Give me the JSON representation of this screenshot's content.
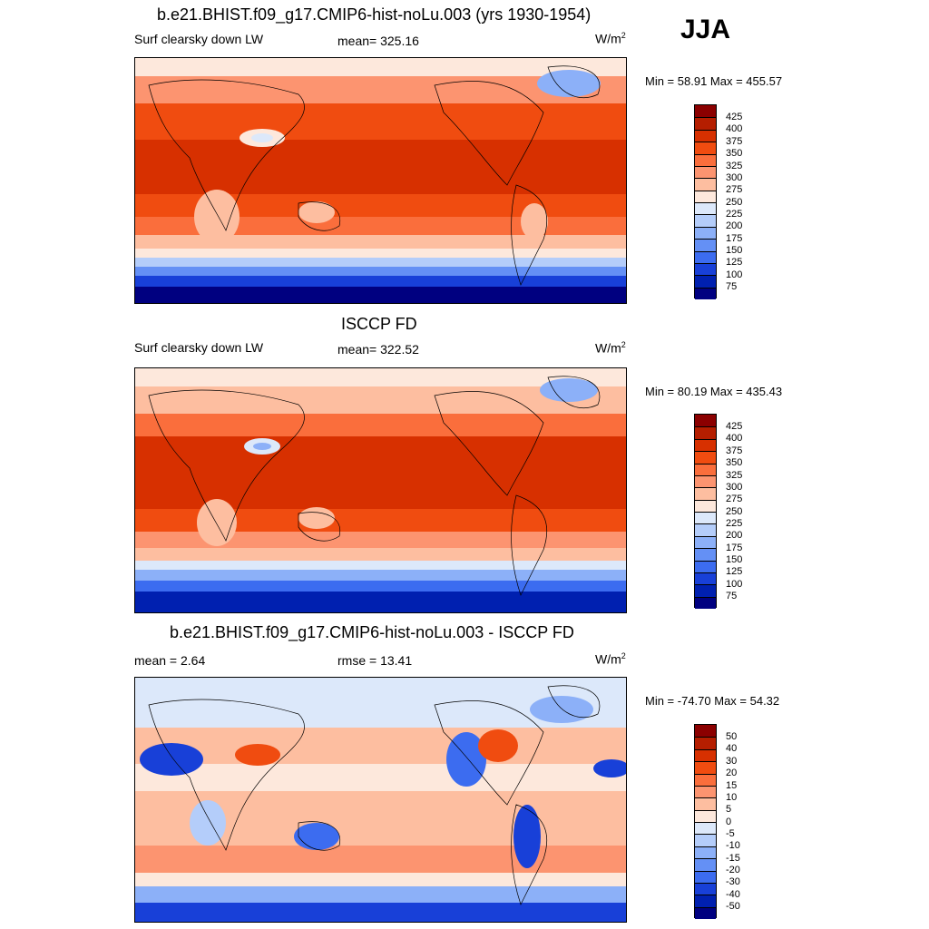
{
  "season": "JJA",
  "panels": [
    {
      "title": "b.e21.BHIST.f09_g17.CMIP6-hist-noLu.003 (yrs 1930-1954)",
      "left_label": "Surf clearsky down LW",
      "center_label": "mean= 325.16",
      "units": "W/m",
      "units_exp": "2",
      "minmax": "Min =  58.91 Max = 455.57",
      "colorbar_labels": [
        "425",
        "400",
        "375",
        "350",
        "325",
        "300",
        "275",
        "250",
        "225",
        "200",
        "175",
        "150",
        "125",
        "100",
        "75"
      ]
    },
    {
      "title": "ISCCP FD",
      "left_label": "Surf clearsky down LW",
      "center_label": "mean= 322.52",
      "units": "W/m",
      "units_exp": "2",
      "minmax": "Min =  80.19 Max = 435.43",
      "colorbar_labels": [
        "425",
        "400",
        "375",
        "350",
        "325",
        "300",
        "275",
        "250",
        "225",
        "200",
        "175",
        "150",
        "125",
        "100",
        "75"
      ]
    },
    {
      "title": "b.e21.BHIST.f09_g17.CMIP6-hist-noLu.003 - ISCCP FD",
      "left_label": "mean =   2.64",
      "center_label": "rmse =  13.41",
      "units": "W/m",
      "units_exp": "2",
      "minmax": "Min = -74.70 Max =  54.32",
      "colorbar_labels": [
        "50",
        "40",
        "30",
        "20",
        "15",
        "10",
        "5",
        "0",
        "-5",
        "-10",
        "-15",
        "-20",
        "-30",
        "-40",
        "-50"
      ]
    }
  ],
  "colors": {
    "scale": [
      "#8b0000",
      "#b51e00",
      "#d73000",
      "#f04c10",
      "#fa6e3c",
      "#fc9470",
      "#fdbea0",
      "#fde8dc",
      "#dce8fa",
      "#b4cdfa",
      "#8cb0f8",
      "#6490f5",
      "#3c6cf0",
      "#1840d8",
      "#0020b0",
      "#000080"
    ]
  }
}
